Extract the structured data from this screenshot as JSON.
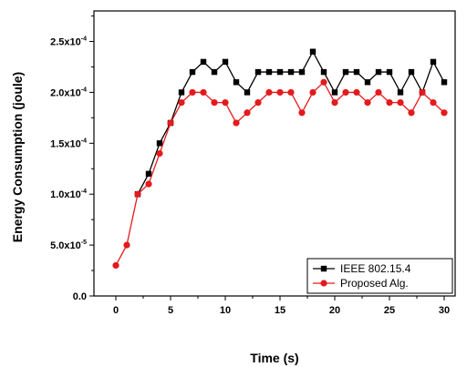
{
  "chart_data": {
    "type": "line",
    "title": "",
    "xlabel": "Time (s)",
    "ylabel": "Energy Consumption (joule)",
    "xlim": [
      -2,
      31
    ],
    "ylim": [
      0,
      0.00028
    ],
    "grid": false,
    "legend_position": "bottom-right",
    "x_ticks": [
      {
        "value": 0,
        "label": "0"
      },
      {
        "value": 5,
        "label": "5"
      },
      {
        "value": 10,
        "label": "10"
      },
      {
        "value": 15,
        "label": "15"
      },
      {
        "value": 20,
        "label": "20"
      },
      {
        "value": 25,
        "label": "25"
      },
      {
        "value": 30,
        "label": "30"
      }
    ],
    "y_ticks": [
      {
        "value": 0,
        "base": "0.0",
        "exp": ""
      },
      {
        "value": 5e-05,
        "base": "5.0x10",
        "exp": "-5"
      },
      {
        "value": 0.0001,
        "base": "1.0x10",
        "exp": "-4"
      },
      {
        "value": 0.00015,
        "base": "1.5x10",
        "exp": "-4"
      },
      {
        "value": 0.0002,
        "base": "2.0x10",
        "exp": "-4"
      },
      {
        "value": 0.00025,
        "base": "2.5x10",
        "exp": "-4"
      }
    ],
    "x": [
      0,
      1,
      2,
      3,
      4,
      5,
      6,
      7,
      8,
      9,
      10,
      11,
      12,
      13,
      14,
      15,
      16,
      17,
      18,
      19,
      20,
      21,
      22,
      23,
      24,
      25,
      26,
      27,
      28,
      29,
      30
    ],
    "series": [
      {
        "name": "IEEE 802.15.4",
        "color": "#000000",
        "marker": "square",
        "x": [
          2,
          3,
          4,
          5,
          6,
          7,
          8,
          9,
          10,
          11,
          12,
          13,
          14,
          15,
          16,
          17,
          18,
          19,
          20,
          21,
          22,
          23,
          24,
          25,
          26,
          27,
          28,
          29,
          30
        ],
        "values": [
          0.0001,
          0.00012,
          0.00015,
          0.00017,
          0.0002,
          0.00022,
          0.00023,
          0.00022,
          0.00023,
          0.00021,
          0.0002,
          0.00022,
          0.00022,
          0.00022,
          0.00022,
          0.00022,
          0.00024,
          0.00022,
          0.0002,
          0.00022,
          0.00022,
          0.00021,
          0.00022,
          0.00022,
          0.0002,
          0.00022,
          0.0002,
          0.00023,
          0.00021
        ]
      },
      {
        "name": "Proposed Alg.",
        "color": "#e41a1c",
        "marker": "circle",
        "x": [
          0,
          1,
          2,
          3,
          4,
          5,
          6,
          7,
          8,
          9,
          10,
          11,
          12,
          13,
          14,
          15,
          16,
          17,
          18,
          19,
          20,
          21,
          22,
          23,
          24,
          25,
          26,
          27,
          28,
          29,
          30
        ],
        "values": [
          3e-05,
          5e-05,
          0.0001,
          0.00011,
          0.00014,
          0.00017,
          0.00019,
          0.0002,
          0.0002,
          0.00019,
          0.00019,
          0.00017,
          0.00018,
          0.00019,
          0.0002,
          0.0002,
          0.0002,
          0.00018,
          0.0002,
          0.00021,
          0.00019,
          0.0002,
          0.0002,
          0.00019,
          0.0002,
          0.00019,
          0.00019,
          0.00018,
          0.0002,
          0.00019,
          0.00018
        ]
      }
    ]
  }
}
